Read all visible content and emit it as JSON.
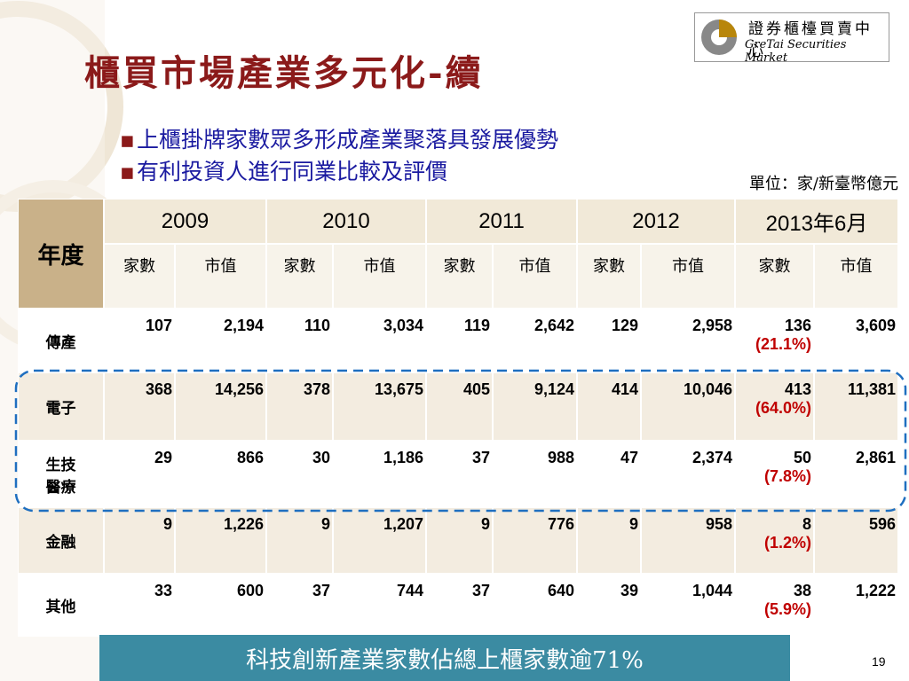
{
  "title": "櫃買市場產業多元化-續",
  "logo": {
    "name": "證券櫃檯買賣中心",
    "english": "GreTai Securities Market"
  },
  "bullets": [
    "上櫃掛牌家數眾多形成產業聚落具發展優勢",
    "有利投資人進行同業比較及評價"
  ],
  "unit": "單位：家/新臺幣億元",
  "table": {
    "corner": "年度",
    "years": [
      "2009",
      "2010",
      "2011",
      "2012",
      "2013年6月"
    ],
    "subheaders": [
      "家數",
      "市值",
      "家數",
      "市值",
      "家數",
      "市值",
      "家數",
      "市值",
      "家數",
      "市值"
    ],
    "rows": [
      {
        "label": "傳產",
        "cells": [
          "107",
          "2,194",
          "110",
          "3,034",
          "119",
          "2,642",
          "129",
          "2,958",
          "136",
          "3,609"
        ],
        "share": "(21.1%)"
      },
      {
        "label": "電子",
        "cells": [
          "368",
          "14,256",
          "378",
          "13,675",
          "405",
          "9,124",
          "414",
          "10,046",
          "413",
          "11,381"
        ],
        "share": "(64.0%)"
      },
      {
        "label": "生技醫療",
        "cells": [
          "29",
          "866",
          "30",
          "1,186",
          "37",
          "988",
          "47",
          "2,374",
          "50",
          "2,861"
        ],
        "share": "(7.8%)"
      },
      {
        "label": "金融",
        "cells": [
          "9",
          "1,226",
          "9",
          "1,207",
          "9",
          "776",
          "9",
          "958",
          "8",
          "596"
        ],
        "share": "(1.2%)"
      },
      {
        "label": "其他",
        "cells": [
          "33",
          "600",
          "37",
          "744",
          "37",
          "640",
          "39",
          "1,044",
          "38",
          "1,222"
        ],
        "share": "(5.9%)"
      }
    ]
  },
  "banner": "科技創新產業家數佔總上櫃家數逾71%",
  "page_number": "19"
}
